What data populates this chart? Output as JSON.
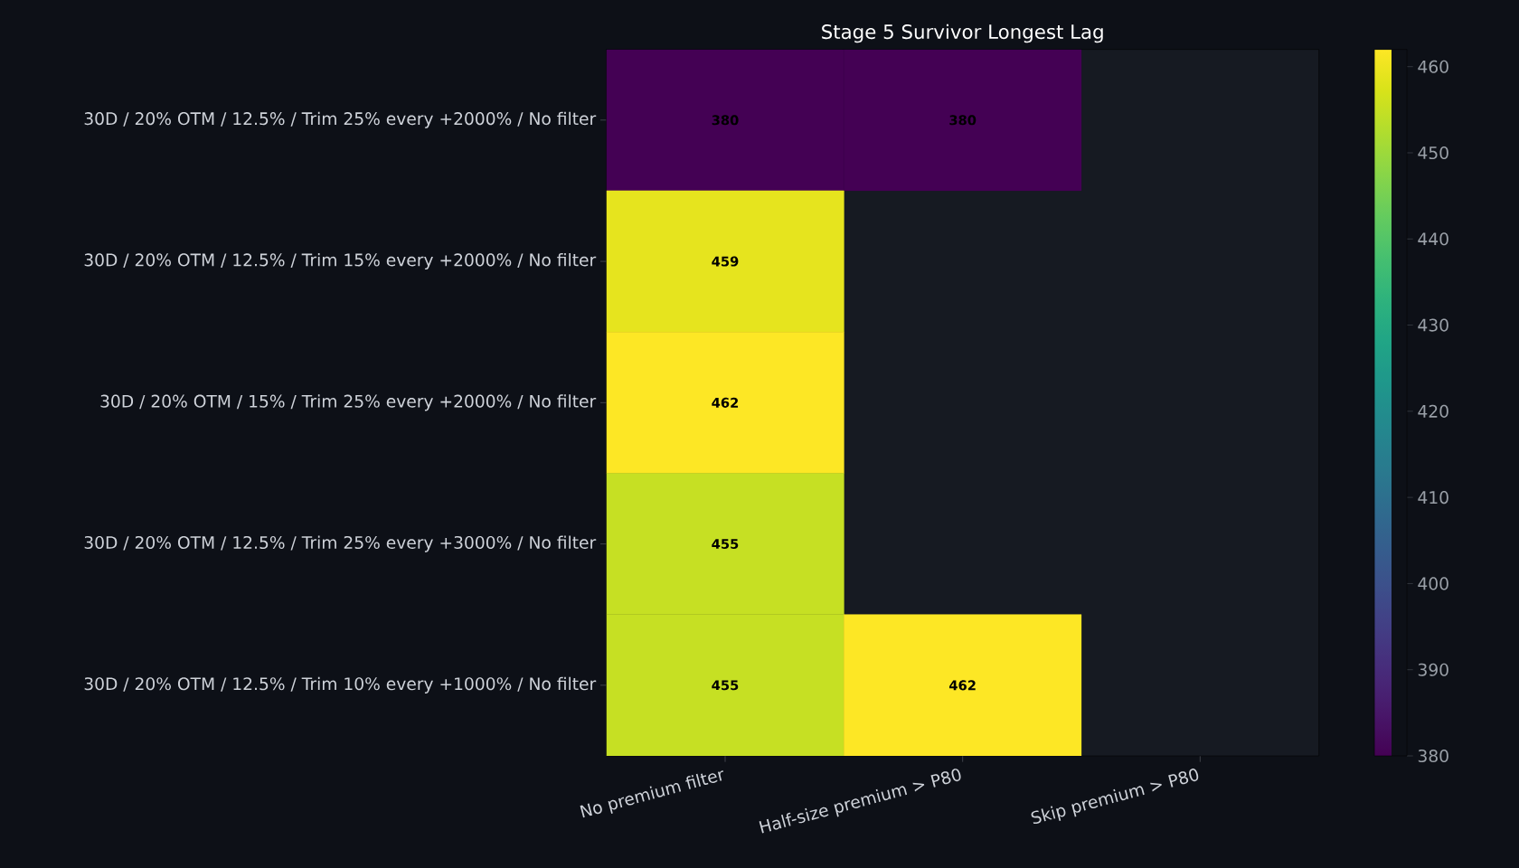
{
  "chart_data": {
    "type": "heatmap",
    "title": "Stage 5 Survivor Longest Lag",
    "categories": [
      "No premium filter",
      "Half-size premium > P80",
      "Skip premium > P80"
    ],
    "y_categories": [
      "30D / 20% OTM / 12.5% / Trim 25% every +2000% / No filter",
      "30D / 20% OTM / 12.5% / Trim 15% every +2000% / No filter",
      "30D / 20% OTM / 15% / Trim 25% every +2000% / No filter",
      "30D / 20% OTM / 12.5% / Trim 25% every +3000% / No filter",
      "30D / 20% OTM / 12.5% / Trim 10% every +1000% / No filter"
    ],
    "cells": [
      [
        380,
        380,
        null
      ],
      [
        459,
        null,
        null
      ],
      [
        462,
        null,
        null
      ],
      [
        455,
        null,
        null
      ],
      [
        455,
        462,
        null
      ]
    ],
    "clim": [
      380,
      462
    ],
    "cticks": [
      380,
      390,
      400,
      410,
      420,
      430,
      440,
      450,
      460
    ],
    "data_labels": true
  }
}
